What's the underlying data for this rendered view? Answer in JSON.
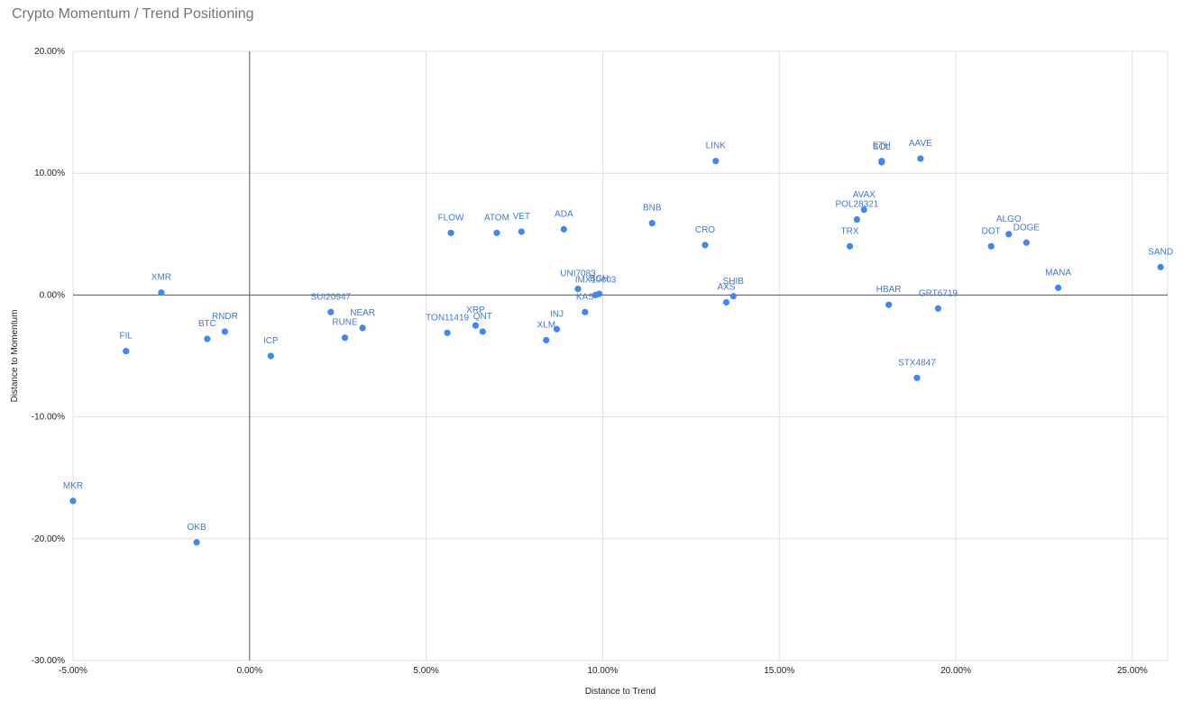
{
  "chart_data": {
    "type": "scatter",
    "title": "Crypto Momentum / Trend Positioning",
    "xlabel": "Distance to Trend",
    "ylabel": "Distance to Momentum",
    "xlim": [
      -5,
      26
    ],
    "ylim": [
      -30,
      20
    ],
    "x_ticks": [
      "-5.00%",
      "0.00%",
      "5.00%",
      "10.00%",
      "15.00%",
      "20.00%",
      "25.00%"
    ],
    "y_ticks": [
      "20.00%",
      "10.00%",
      "0.00%",
      "-10.00%",
      "-20.00%",
      "-30.00%"
    ],
    "grid": true,
    "legend": "none",
    "point_color": "#4285f4",
    "label_color": "#3d79d8",
    "points": [
      {
        "label": "MKR",
        "x": -5.0,
        "y": -16.9
      },
      {
        "label": "FIL",
        "x": -3.5,
        "y": -4.6
      },
      {
        "label": "XMR",
        "x": -2.5,
        "y": 0.2
      },
      {
        "label": "OKB",
        "x": -1.5,
        "y": -20.3
      },
      {
        "label": "BTC",
        "x": -1.2,
        "y": -3.6
      },
      {
        "label": "RNDR",
        "x": -0.7,
        "y": -3.0
      },
      {
        "label": "ICP",
        "x": 0.6,
        "y": -5.0
      },
      {
        "label": "SUI20947",
        "x": 2.3,
        "y": -1.4
      },
      {
        "label": "RUNE",
        "x": 2.7,
        "y": -3.5
      },
      {
        "label": "NEAR",
        "x": 3.2,
        "y": -2.7
      },
      {
        "label": "TON11419",
        "x": 5.6,
        "y": -3.1
      },
      {
        "label": "FLOW",
        "x": 5.7,
        "y": 5.1
      },
      {
        "label": "XRP",
        "x": 6.4,
        "y": -2.5
      },
      {
        "label": "QNT",
        "x": 6.6,
        "y": -3.0
      },
      {
        "label": "ATOM",
        "x": 7.0,
        "y": 5.1
      },
      {
        "label": "VET",
        "x": 7.7,
        "y": 5.2
      },
      {
        "label": "XLM",
        "x": 8.4,
        "y": -3.7
      },
      {
        "label": "INJ",
        "x": 8.7,
        "y": -2.8
      },
      {
        "label": "ADA",
        "x": 8.9,
        "y": 5.4
      },
      {
        "label": "UNI7083",
        "x": 9.3,
        "y": 0.5
      },
      {
        "label": "KAS",
        "x": 9.5,
        "y": -1.4
      },
      {
        "label": "IMX10603",
        "x": 9.8,
        "y": 0.0
      },
      {
        "label": "BCH",
        "x": 9.9,
        "y": 0.1
      },
      {
        "label": "BNB",
        "x": 11.4,
        "y": 5.9
      },
      {
        "label": "CRO",
        "x": 12.9,
        "y": 4.1
      },
      {
        "label": "LINK",
        "x": 13.2,
        "y": 11.0
      },
      {
        "label": "AXS",
        "x": 13.5,
        "y": -0.6
      },
      {
        "label": "SHIB",
        "x": 13.7,
        "y": -0.1
      },
      {
        "label": "TRX",
        "x": 17.0,
        "y": 4.0
      },
      {
        "label": "POL28321",
        "x": 17.2,
        "y": 6.2
      },
      {
        "label": "AVAX",
        "x": 17.4,
        "y": 7.0
      },
      {
        "label": "SOL",
        "x": 17.9,
        "y": 10.9
      },
      {
        "label": "ETH",
        "x": 17.9,
        "y": 11.0
      },
      {
        "label": "HBAR",
        "x": 18.1,
        "y": -0.8
      },
      {
        "label": "STX4847",
        "x": 18.9,
        "y": -6.8
      },
      {
        "label": "AAVE",
        "x": 19.0,
        "y": 11.2
      },
      {
        "label": "GRT6719",
        "x": 19.5,
        "y": -1.1
      },
      {
        "label": "DOT",
        "x": 21.0,
        "y": 4.0
      },
      {
        "label": "ALGO",
        "x": 21.5,
        "y": 5.0
      },
      {
        "label": "DOGE",
        "x": 22.0,
        "y": 4.3
      },
      {
        "label": "MANA",
        "x": 22.9,
        "y": 0.6
      },
      {
        "label": "SAND",
        "x": 25.8,
        "y": 2.3
      }
    ]
  }
}
